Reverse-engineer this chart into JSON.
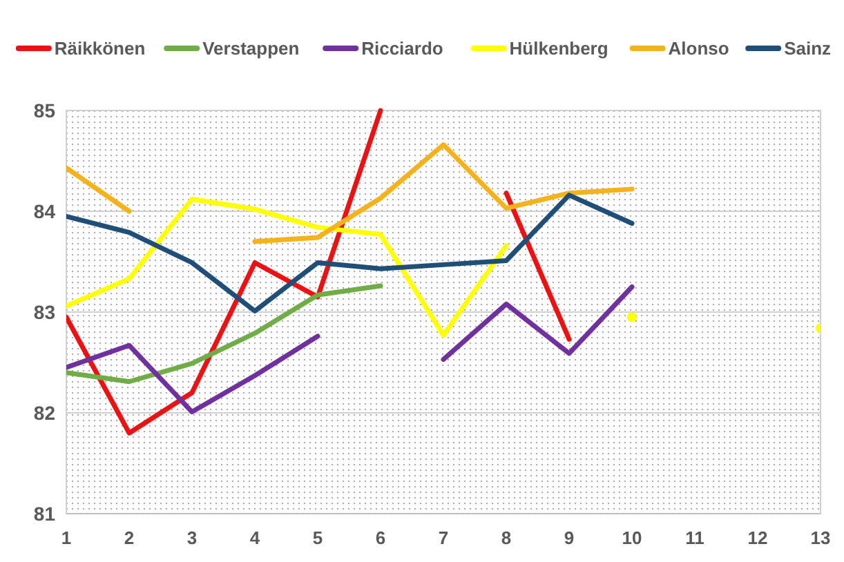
{
  "chart_data": {
    "type": "line",
    "x": [
      1,
      2,
      3,
      4,
      5,
      6,
      7,
      8,
      9,
      10,
      11,
      12,
      13
    ],
    "xlim": [
      1,
      13
    ],
    "xticks": [
      1,
      2,
      3,
      4,
      5,
      6,
      7,
      8,
      9,
      10,
      11,
      12,
      13
    ],
    "ylim": [
      81,
      85
    ],
    "yticks": [
      81,
      82,
      83,
      84,
      85
    ],
    "grid": "y",
    "legend": "top",
    "marker": "none",
    "line_style": "solid",
    "series": [
      {
        "name": "Räikkönen",
        "color": "#ee1111",
        "values": [
          82.95,
          81.8,
          82.2,
          83.49,
          83.15,
          85,
          null,
          84.18,
          82.73,
          null,
          null,
          null,
          null
        ]
      },
      {
        "name": "Verstappen",
        "color": "#70ad47",
        "values": [
          82.4,
          82.31,
          82.49,
          82.79,
          83.17,
          83.26,
          null,
          null,
          null,
          null,
          null,
          null,
          null
        ]
      },
      {
        "name": "Ricciardo",
        "color": "#7030a0",
        "values": [
          82.45,
          82.67,
          82.01,
          82.37,
          82.76,
          null,
          82.53,
          83.08,
          82.59,
          83.25,
          null,
          null,
          null
        ]
      },
      {
        "name": "Hülkenberg",
        "color": "#ffff00",
        "values": [
          83.06,
          83.33,
          84.12,
          84.02,
          83.84,
          83.77,
          82.77,
          83.66,
          null,
          82.95,
          null,
          null,
          82.84
        ]
      },
      {
        "name": "Alonso",
        "color": "#f5b21b",
        "values": [
          84.43,
          84.0,
          null,
          83.7,
          83.74,
          84.13,
          84.66,
          84.03,
          84.18,
          84.22,
          null,
          null,
          null
        ]
      },
      {
        "name": "Sainz",
        "color": "#1f4e79",
        "values": [
          83.95,
          83.79,
          83.49,
          83.01,
          83.49,
          83.43,
          83.47,
          83.51,
          84.16,
          83.88,
          null,
          null,
          null
        ]
      }
    ]
  }
}
